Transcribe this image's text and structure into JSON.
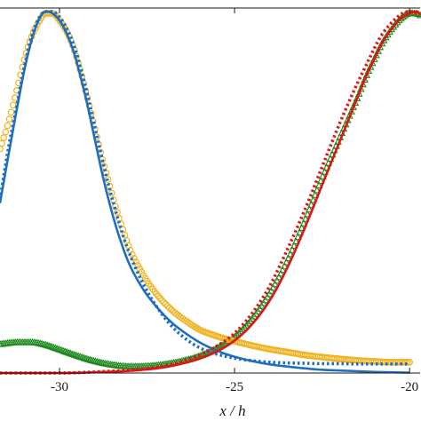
{
  "chart_data": {
    "type": "line",
    "title": "",
    "xlabel": "x / h",
    "ylabel": "",
    "xlim": [
      -31.7,
      -19.7
    ],
    "ylim": [
      0.0,
      1.0
    ],
    "xticks": [
      -30,
      -25,
      -20
    ],
    "xtick_labels": [
      "-30",
      "-25",
      "-20"
    ],
    "grid": false,
    "legend": "none",
    "series": [
      {
        "color": "#1f6fbf",
        "style": "solid",
        "x": [
          -31.7,
          -31.5,
          -31.2,
          -31.0,
          -30.8,
          -30.6,
          -30.4,
          -30.2,
          -30.0,
          -29.8,
          -29.6,
          -29.4,
          -29.2,
          -29.0,
          -28.8,
          -28.6,
          -28.4,
          -28.2,
          -28.0,
          -27.6,
          -27.2,
          -26.8,
          -26.4,
          -26.0,
          -25.6,
          -25.2,
          -24.8,
          -24.4,
          -24.0,
          -23.5,
          -23.0,
          -22.5,
          -22.0,
          -21.5,
          -21.0,
          -20.5,
          -20.0
        ],
        "y": [
          0.47,
          0.58,
          0.74,
          0.84,
          0.92,
          0.975,
          1.0,
          0.995,
          0.975,
          0.94,
          0.89,
          0.82,
          0.74,
          0.65,
          0.56,
          0.48,
          0.41,
          0.35,
          0.3,
          0.23,
          0.18,
          0.14,
          0.11,
          0.085,
          0.066,
          0.051,
          0.04,
          0.031,
          0.024,
          0.018,
          0.013,
          0.009,
          0.007,
          0.005,
          0.003,
          0.002,
          0.001
        ]
      },
      {
        "color": "#1f6fbf",
        "style": "dotted",
        "x": [
          -31.7,
          -31.5,
          -31.2,
          -31.0,
          -30.8,
          -30.6,
          -30.4,
          -30.2,
          -30.0,
          -29.8,
          -29.6,
          -29.4,
          -29.2,
          -29.0,
          -28.8,
          -28.6,
          -28.4,
          -28.2,
          -28.0,
          -27.6,
          -27.2,
          -26.8,
          -26.4,
          -26.0,
          -25.6,
          -25.2,
          -24.8,
          -24.4,
          -24.0,
          -23.5,
          -23.0,
          -22.5,
          -22.0,
          -21.5,
          -21.0,
          -20.5,
          -20.0
        ],
        "y": [
          0.48,
          0.6,
          0.75,
          0.85,
          0.93,
          0.98,
          1.0,
          1.0,
          0.985,
          0.955,
          0.91,
          0.845,
          0.77,
          0.685,
          0.6,
          0.52,
          0.45,
          0.385,
          0.33,
          0.245,
          0.18,
          0.13,
          0.095,
          0.07,
          0.055,
          0.045,
          0.038,
          0.033,
          0.03,
          0.028,
          0.027,
          0.026,
          0.026,
          0.025,
          0.025,
          0.025,
          0.025
        ]
      },
      {
        "color": "#f0b323",
        "style": "markers-circle",
        "x": [
          -31.7,
          -31.5,
          -31.2,
          -31.0,
          -30.8,
          -30.6,
          -30.4,
          -30.2,
          -30.0,
          -29.8,
          -29.6,
          -29.4,
          -29.2,
          -29.0,
          -28.8,
          -28.6,
          -28.4,
          -28.2,
          -28.0,
          -27.6,
          -27.2,
          -26.8,
          -26.4,
          -26.0,
          -25.6,
          -25.2,
          -24.8,
          -24.4,
          -24.0,
          -23.5,
          -23.0,
          -22.5,
          -22.0,
          -21.5,
          -21.0,
          -20.5,
          -20.0
        ],
        "y": [
          0.62,
          0.68,
          0.79,
          0.87,
          0.93,
          0.97,
          0.995,
          0.995,
          0.975,
          0.945,
          0.9,
          0.835,
          0.76,
          0.68,
          0.6,
          0.53,
          0.46,
          0.4,
          0.345,
          0.27,
          0.215,
          0.175,
          0.145,
          0.12,
          0.105,
          0.093,
          0.083,
          0.074,
          0.066,
          0.058,
          0.05,
          0.044,
          0.039,
          0.035,
          0.032,
          0.03,
          0.03
        ]
      },
      {
        "color": "#1f8a1f",
        "style": "markers-triangle",
        "x": [
          -31.7,
          -31.2,
          -30.8,
          -30.4,
          -30.0,
          -29.5,
          -29.0,
          -28.5,
          -28.0,
          -27.5,
          -27.0,
          -26.5,
          -26.0,
          -25.5,
          -25.0,
          -24.5,
          -24.0,
          -23.5,
          -23.0,
          -22.5,
          -22.0,
          -21.5,
          -21.2,
          -21.0,
          -20.8,
          -20.6,
          -20.4,
          -20.2,
          -20.0,
          -19.8,
          -19.7
        ],
        "y": [
          0.08,
          0.085,
          0.085,
          0.078,
          0.065,
          0.048,
          0.033,
          0.023,
          0.018,
          0.019,
          0.024,
          0.033,
          0.047,
          0.069,
          0.1,
          0.15,
          0.22,
          0.31,
          0.42,
          0.54,
          0.65,
          0.76,
          0.83,
          0.87,
          0.91,
          0.94,
          0.965,
          0.985,
          0.995,
          0.995,
          0.99
        ]
      },
      {
        "color": "#e01414",
        "style": "solid",
        "x": [
          -31.7,
          -30.0,
          -29.0,
          -28.0,
          -27.5,
          -27.0,
          -26.5,
          -26.0,
          -25.5,
          -25.0,
          -24.5,
          -24.0,
          -23.5,
          -23.0,
          -22.5,
          -22.0,
          -21.5,
          -21.2,
          -21.0,
          -20.8,
          -20.6,
          -20.4,
          -20.2,
          -20.0,
          -19.8,
          -19.7
        ],
        "y": [
          0.0,
          0.0,
          0.002,
          0.006,
          0.01,
          0.016,
          0.026,
          0.04,
          0.06,
          0.09,
          0.135,
          0.2,
          0.29,
          0.4,
          0.52,
          0.64,
          0.76,
          0.83,
          0.87,
          0.91,
          0.94,
          0.965,
          0.985,
          0.995,
          1.0,
          0.99
        ]
      },
      {
        "color": "#e01414",
        "style": "dotted",
        "x": [
          -31.7,
          -30.0,
          -29.0,
          -28.0,
          -27.5,
          -27.0,
          -26.5,
          -26.0,
          -25.5,
          -25.0,
          -24.5,
          -24.0,
          -23.5,
          -23.0,
          -22.5,
          -22.0,
          -21.5,
          -21.2,
          -21.0,
          -20.8,
          -20.6,
          -20.4,
          -20.2,
          -20.0,
          -19.8,
          -19.7
        ],
        "y": [
          0.0,
          0.0,
          0.003,
          0.008,
          0.013,
          0.02,
          0.032,
          0.05,
          0.075,
          0.11,
          0.165,
          0.24,
          0.34,
          0.45,
          0.57,
          0.69,
          0.8,
          0.86,
          0.9,
          0.935,
          0.96,
          0.98,
          0.995,
          1.0,
          0.995,
          0.99
        ]
      }
    ]
  }
}
